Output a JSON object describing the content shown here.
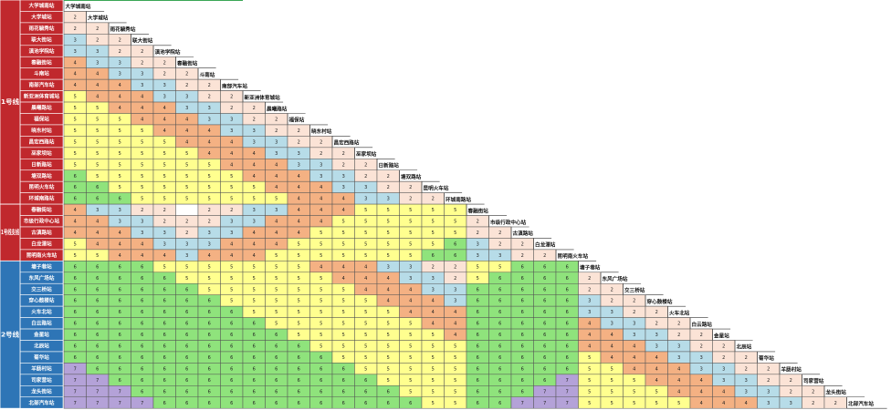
{
  "fare_colors": {
    "2": "#fbe3d6",
    "3": "#b7dce8",
    "4": "#f4b183",
    "5": "#ffff8f",
    "6": "#8fe37c",
    "7": "#b4a2d8"
  },
  "groups": [
    {
      "label": "1号线",
      "color": "#c0282d",
      "stations": [
        {
          "name": "大学城南站",
          "fares": []
        },
        {
          "name": "大学城站",
          "fares": [
            2
          ]
        },
        {
          "name": "雨花毓秀站",
          "fares": [
            2,
            2
          ]
        },
        {
          "name": "联大街站",
          "fares": [
            3,
            2,
            2
          ]
        },
        {
          "name": "滇池学院站",
          "fares": [
            3,
            3,
            2,
            2
          ]
        },
        {
          "name": "春融街站",
          "fares": [
            4,
            3,
            3,
            2,
            2
          ]
        },
        {
          "name": "斗南站",
          "fares": [
            4,
            4,
            3,
            3,
            2,
            2
          ]
        },
        {
          "name": "南部汽车站",
          "fares": [
            4,
            4,
            4,
            3,
            3,
            2,
            2
          ]
        },
        {
          "name": "新亚洲体育城站",
          "fares": [
            5,
            4,
            4,
            4,
            3,
            3,
            2,
            2
          ]
        },
        {
          "name": "晨曦路站",
          "fares": [
            5,
            5,
            4,
            4,
            4,
            3,
            3,
            2,
            2
          ]
        },
        {
          "name": "福保站",
          "fares": [
            5,
            5,
            5,
            4,
            4,
            4,
            3,
            3,
            2,
            2
          ]
        },
        {
          "name": "晓东村站",
          "fares": [
            5,
            5,
            5,
            5,
            4,
            4,
            4,
            3,
            3,
            2,
            2
          ]
        },
        {
          "name": "昌宏西路站",
          "fares": [
            5,
            5,
            5,
            5,
            5,
            4,
            4,
            4,
            3,
            3,
            2,
            2
          ]
        },
        {
          "name": "巫家坝站",
          "fares": [
            5,
            5,
            5,
            5,
            5,
            5,
            4,
            4,
            4,
            3,
            3,
            2,
            2
          ]
        },
        {
          "name": "日新路站",
          "fares": [
            5,
            5,
            5,
            5,
            5,
            5,
            5,
            4,
            4,
            4,
            3,
            3,
            2,
            2
          ]
        },
        {
          "name": "塘双路站",
          "fares": [
            6,
            5,
            5,
            5,
            5,
            5,
            5,
            5,
            4,
            4,
            4,
            3,
            3,
            2,
            2
          ]
        },
        {
          "name": "昆明火车站",
          "fares": [
            6,
            6,
            5,
            5,
            5,
            5,
            5,
            5,
            5,
            4,
            4,
            4,
            3,
            3,
            2,
            2
          ]
        },
        {
          "name": "环城南路站",
          "fares": [
            6,
            6,
            6,
            5,
            5,
            5,
            5,
            5,
            5,
            5,
            4,
            4,
            4,
            3,
            3,
            2,
            2
          ]
        }
      ]
    },
    {
      "label": "1号线支线",
      "color": "#c0282d",
      "stations": [
        {
          "name": "春融街站",
          "fares": [
            4,
            3,
            3,
            2,
            2,
            null,
            2,
            2,
            3,
            3,
            4,
            4,
            4,
            5,
            5,
            5,
            5,
            5
          ]
        },
        {
          "name": "市级行政中心站",
          "fares": [
            4,
            4,
            3,
            3,
            2,
            2,
            2,
            3,
            3,
            4,
            4,
            4,
            5,
            5,
            5,
            5,
            5,
            5,
            2
          ]
        },
        {
          "name": "古滇路站",
          "fares": [
            4,
            4,
            4,
            3,
            3,
            2,
            3,
            3,
            4,
            4,
            4,
            5,
            5,
            5,
            5,
            5,
            5,
            5,
            2,
            2
          ]
        },
        {
          "name": "白龙潭站",
          "fares": [
            5,
            4,
            4,
            4,
            3,
            3,
            3,
            4,
            4,
            4,
            5,
            5,
            5,
            5,
            5,
            5,
            5,
            6,
            3,
            2,
            2
          ]
        },
        {
          "name": "昆明南火车站",
          "fares": [
            5,
            5,
            4,
            4,
            4,
            3,
            4,
            4,
            4,
            5,
            5,
            5,
            5,
            5,
            5,
            5,
            6,
            6,
            3,
            3,
            2,
            2
          ]
        }
      ]
    },
    {
      "label": "2号线",
      "color": "#2e75b6",
      "stations": [
        {
          "name": "塘子巷站",
          "fares": [
            6,
            6,
            6,
            6,
            5,
            5,
            5,
            5,
            5,
            5,
            5,
            4,
            4,
            4,
            3,
            3,
            2,
            2,
            5,
            5,
            6,
            6,
            6
          ]
        },
        {
          "name": "东风广场站",
          "fares": [
            6,
            6,
            6,
            6,
            6,
            5,
            5,
            5,
            5,
            5,
            5,
            5,
            4,
            4,
            4,
            3,
            3,
            2,
            5,
            6,
            6,
            6,
            6,
            2
          ]
        },
        {
          "name": "交三桥站",
          "fares": [
            6,
            6,
            6,
            6,
            6,
            6,
            5,
            5,
            5,
            5,
            5,
            5,
            5,
            4,
            4,
            4,
            3,
            3,
            6,
            6,
            6,
            6,
            6,
            2,
            2
          ]
        },
        {
          "name": "穿心鼓楼站",
          "fares": [
            6,
            6,
            6,
            6,
            6,
            6,
            6,
            5,
            5,
            5,
            5,
            5,
            5,
            5,
            4,
            4,
            4,
            3,
            6,
            6,
            6,
            6,
            6,
            3,
            2,
            2
          ]
        },
        {
          "name": "火车北站",
          "fares": [
            6,
            6,
            6,
            6,
            6,
            6,
            6,
            6,
            5,
            5,
            5,
            5,
            5,
            5,
            5,
            4,
            4,
            4,
            6,
            6,
            6,
            6,
            6,
            3,
            3,
            2,
            2
          ]
        },
        {
          "name": "白云路站",
          "fares": [
            6,
            6,
            6,
            6,
            6,
            6,
            6,
            6,
            6,
            5,
            5,
            5,
            5,
            5,
            5,
            5,
            4,
            4,
            6,
            6,
            6,
            6,
            6,
            4,
            3,
            3,
            2,
            2
          ]
        },
        {
          "name": "金星站",
          "fares": [
            6,
            6,
            6,
            6,
            6,
            6,
            6,
            6,
            6,
            6,
            5,
            5,
            5,
            5,
            5,
            5,
            5,
            4,
            6,
            6,
            6,
            6,
            6,
            4,
            4,
            3,
            3,
            2,
            2
          ]
        },
        {
          "name": "北辰站",
          "fares": [
            6,
            6,
            6,
            6,
            6,
            6,
            6,
            6,
            6,
            6,
            6,
            5,
            5,
            5,
            5,
            5,
            5,
            5,
            6,
            6,
            6,
            6,
            6,
            4,
            4,
            4,
            3,
            3,
            2,
            2
          ]
        },
        {
          "name": "菊华站",
          "fares": [
            6,
            6,
            6,
            6,
            6,
            6,
            6,
            6,
            6,
            6,
            6,
            6,
            5,
            5,
            5,
            5,
            5,
            5,
            6,
            6,
            6,
            6,
            6,
            5,
            4,
            4,
            4,
            3,
            3,
            2,
            2
          ]
        },
        {
          "name": "羊肠村站",
          "fares": [
            7,
            6,
            6,
            6,
            6,
            6,
            6,
            6,
            6,
            6,
            6,
            6,
            6,
            5,
            5,
            5,
            5,
            5,
            6,
            6,
            6,
            6,
            6,
            5,
            5,
            4,
            4,
            4,
            3,
            3,
            2,
            2
          ]
        },
        {
          "name": "司家营站",
          "fares": [
            7,
            7,
            6,
            6,
            6,
            6,
            6,
            6,
            6,
            6,
            6,
            6,
            6,
            6,
            5,
            5,
            5,
            5,
            6,
            6,
            6,
            6,
            7,
            5,
            5,
            5,
            4,
            4,
            4,
            3,
            3,
            2,
            2
          ]
        },
        {
          "name": "龙头街站",
          "fares": [
            7,
            7,
            7,
            6,
            6,
            6,
            6,
            6,
            6,
            6,
            6,
            6,
            6,
            6,
            6,
            5,
            5,
            5,
            6,
            6,
            6,
            7,
            7,
            5,
            5,
            5,
            5,
            4,
            4,
            4,
            3,
            3,
            2,
            2
          ]
        },
        {
          "name": "北部汽车站",
          "fares": [
            7,
            7,
            7,
            7,
            6,
            6,
            6,
            6,
            6,
            6,
            6,
            6,
            6,
            6,
            6,
            6,
            5,
            5,
            6,
            6,
            7,
            7,
            7,
            5,
            5,
            5,
            5,
            5,
            4,
            4,
            4,
            3,
            3,
            2,
            2
          ]
        }
      ]
    }
  ]
}
